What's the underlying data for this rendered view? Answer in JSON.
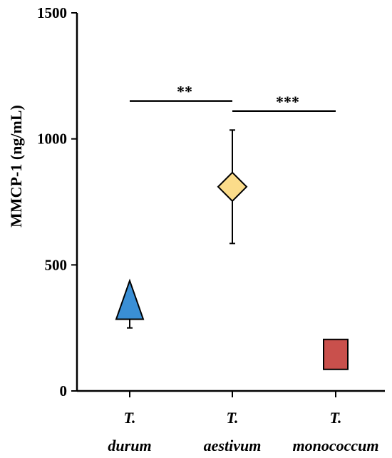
{
  "chart_data": {
    "type": "scatter",
    "title": "",
    "xlabel": "",
    "ylabel": "MMCP-1 (ng/mL)",
    "ylim": [
      0,
      1500
    ],
    "yticks": [
      0,
      500,
      1000,
      1500
    ],
    "grid": false,
    "categories": [
      {
        "line1": "T.",
        "line2": "durum"
      },
      {
        "line1": "T.",
        "line2": "aestivum"
      },
      {
        "line1": "T.",
        "line2": "monococcum"
      }
    ],
    "points": [
      {
        "category": 0,
        "value": 310,
        "error_low": 250,
        "error_high": 400,
        "marker": "triangle",
        "color": "#3a8fd6"
      },
      {
        "category": 1,
        "value": 810,
        "error_low": 585,
        "error_high": 1035,
        "marker": "diamond",
        "color": "#fbdc8a"
      },
      {
        "category": 2,
        "value": 145,
        "error_low": 145,
        "error_high": 145,
        "marker": "square",
        "color": "#c9504c"
      }
    ],
    "significance": [
      {
        "from": 0,
        "to": 1,
        "y": 1150,
        "label": "**"
      },
      {
        "from": 1,
        "to": 2,
        "y": 1110,
        "label": "***"
      }
    ]
  }
}
